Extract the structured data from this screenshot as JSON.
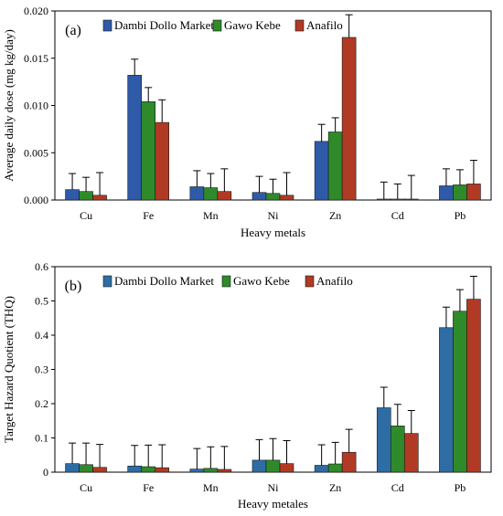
{
  "chart_data": [
    {
      "type": "bar",
      "panel_tag": "(a)",
      "ylabel": "Average daily dose (mg kg/day)",
      "xlabel": "Heavy metals",
      "categories": [
        "Cu",
        "Fe",
        "Mn",
        "Ni",
        "Zn",
        "Cd",
        "Pb"
      ],
      "ylim": [
        0,
        0.02
      ],
      "yticks": [
        "0.000",
        "0.005",
        "0.010",
        "0.015",
        "0.020"
      ],
      "ytick_values": [
        0,
        0.005,
        0.01,
        0.015,
        0.02
      ],
      "grid": false,
      "legend_position": "top",
      "series": [
        {
          "name": "Dambi Dollo Market",
          "color": "#2e5aa8",
          "values": [
            0.0011,
            0.0132,
            0.0014,
            0.0008,
            0.0062,
            0.0001,
            0.0015
          ],
          "errors": [
            0.0017,
            0.0017,
            0.0017,
            0.0017,
            0.0018,
            0.0018,
            0.0018
          ]
        },
        {
          "name": "Gawo Kebe",
          "color": "#2f8a2a",
          "values": [
            0.0009,
            0.0104,
            0.0013,
            0.0007,
            0.0072,
            0.0001,
            0.0016
          ],
          "errors": [
            0.0015,
            0.0015,
            0.0015,
            0.0015,
            0.0015,
            0.0016,
            0.0016
          ]
        },
        {
          "name": "Anafilo",
          "color": "#b03a23",
          "values": [
            0.0005,
            0.0082,
            0.0009,
            0.0005,
            0.0172,
            0.0001,
            0.0017
          ],
          "errors": [
            0.0024,
            0.0024,
            0.0024,
            0.0024,
            0.0024,
            0.0025,
            0.0025
          ]
        }
      ]
    },
    {
      "type": "bar",
      "panel_tag": "(b)",
      "ylabel": "Target Hazard Quotient (THQ)",
      "xlabel": "Heavy metales",
      "categories": [
        "Cu",
        "Fe",
        "Mn",
        "Ni",
        "Zn",
        "Cd",
        "Pb"
      ],
      "ylim": [
        0,
        0.6
      ],
      "yticks": [
        "0",
        "0.1",
        "0.2",
        "0.3",
        "0.4",
        "0.5",
        "0.6"
      ],
      "ytick_values": [
        0,
        0.1,
        0.2,
        0.3,
        0.4,
        0.5,
        0.6
      ],
      "grid": false,
      "legend_position": "top",
      "series": [
        {
          "name": "Dambi Dollo Market",
          "color": "#2e6da4",
          "values": [
            0.025,
            0.018,
            0.009,
            0.035,
            0.02,
            0.188,
            0.422
          ],
          "errors": [
            0.06,
            0.06,
            0.06,
            0.06,
            0.06,
            0.06,
            0.06
          ]
        },
        {
          "name": "Gawo Kebe",
          "color": "#2f8a2a",
          "values": [
            0.022,
            0.016,
            0.011,
            0.035,
            0.024,
            0.135,
            0.47
          ],
          "errors": [
            0.063,
            0.063,
            0.063,
            0.063,
            0.063,
            0.063,
            0.063
          ]
        },
        {
          "name": "Anafilo",
          "color": "#b03a23",
          "values": [
            0.014,
            0.013,
            0.008,
            0.025,
            0.058,
            0.113,
            0.505
          ],
          "errors": [
            0.067,
            0.067,
            0.067,
            0.067,
            0.067,
            0.067,
            0.067
          ]
        }
      ]
    }
  ]
}
